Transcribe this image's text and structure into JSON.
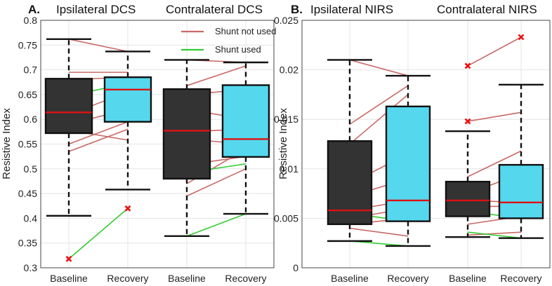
{
  "colors": {
    "shunt_not_used": "#c96a66",
    "shunt_used": "#33cc33",
    "baseline_box": "#333333",
    "recovery_box": "#55d8ee",
    "median": "#dd1111",
    "outlier": "#ee1111"
  },
  "legend": {
    "shunt_not_used": "Shunt not used",
    "shunt_used": "Shunt used"
  },
  "chart_data": [
    {
      "type": "boxplot",
      "panel_letter": "A.",
      "groups": [
        {
          "title": "Ipsilateral DCS"
        },
        {
          "title": "Contralateral DCS"
        }
      ],
      "ylabel": "Resistive Index",
      "ylim": [
        0.3,
        0.8
      ],
      "yticks": [
        0.3,
        0.35,
        0.4,
        0.45,
        0.5,
        0.55,
        0.6,
        0.65,
        0.7,
        0.75,
        0.8
      ],
      "ytick_labels": [
        "0.3",
        "0.35",
        "0.4",
        "0.45",
        "0.5",
        "0.55",
        "0.6",
        "0.65",
        "0.7",
        "0.75",
        "0.8"
      ],
      "categories": [
        "Baseline",
        "Recovery",
        "Baseline",
        "Recovery"
      ],
      "boxes": [
        {
          "fill": "baseline",
          "q1": 0.572,
          "median": 0.614,
          "q3": 0.682,
          "whisker_low": 0.405,
          "whisker_high": 0.762,
          "outliers": [
            0.318
          ]
        },
        {
          "fill": "recovery",
          "q1": 0.595,
          "median": 0.66,
          "q3": 0.685,
          "whisker_low": 0.458,
          "whisker_high": 0.737,
          "outliers": [
            0.42
          ]
        },
        {
          "fill": "baseline",
          "q1": 0.48,
          "median": 0.577,
          "q3": 0.661,
          "whisker_low": 0.364,
          "whisker_high": 0.72,
          "outliers": []
        },
        {
          "fill": "recovery",
          "q1": 0.524,
          "median": 0.56,
          "q3": 0.669,
          "whisker_low": 0.409,
          "whisker_high": 0.715,
          "outliers": []
        }
      ],
      "paired_lines": [
        {
          "group": 0,
          "shunt": false,
          "baseline": 0.762,
          "recovery": 0.737
        },
        {
          "group": 0,
          "shunt": false,
          "baseline": 0.695,
          "recovery": 0.695
        },
        {
          "group": 0,
          "shunt": false,
          "baseline": 0.68,
          "recovery": 0.685
        },
        {
          "group": 0,
          "shunt": false,
          "baseline": 0.61,
          "recovery": 0.655
        },
        {
          "group": 0,
          "shunt": false,
          "baseline": 0.59,
          "recovery": 0.62
        },
        {
          "group": 0,
          "shunt": false,
          "baseline": 0.55,
          "recovery": 0.595
        },
        {
          "group": 0,
          "shunt": false,
          "baseline": 0.535,
          "recovery": 0.58
        },
        {
          "group": 0,
          "shunt": false,
          "baseline": 0.578,
          "recovery": 0.558
        },
        {
          "group": 0,
          "shunt": true,
          "baseline": 0.318,
          "recovery": 0.42
        },
        {
          "group": 0,
          "shunt": true,
          "baseline": 0.648,
          "recovery": 0.672
        },
        {
          "group": 1,
          "shunt": false,
          "baseline": 0.72,
          "recovery": 0.715
        },
        {
          "group": 1,
          "shunt": false,
          "baseline": 0.668,
          "recovery": 0.708
        },
        {
          "group": 1,
          "shunt": false,
          "baseline": 0.65,
          "recovery": 0.66
        },
        {
          "group": 1,
          "shunt": false,
          "baseline": 0.62,
          "recovery": 0.6
        },
        {
          "group": 1,
          "shunt": false,
          "baseline": 0.575,
          "recovery": 0.58
        },
        {
          "group": 1,
          "shunt": false,
          "baseline": 0.56,
          "recovery": 0.55
        },
        {
          "group": 1,
          "shunt": false,
          "baseline": 0.508,
          "recovery": 0.525
        },
        {
          "group": 1,
          "shunt": false,
          "baseline": 0.445,
          "recovery": 0.5
        },
        {
          "group": 1,
          "shunt": false,
          "baseline": 0.47,
          "recovery": 0.54
        },
        {
          "group": 1,
          "shunt": true,
          "baseline": 0.364,
          "recovery": 0.409
        },
        {
          "group": 1,
          "shunt": true,
          "baseline": 0.492,
          "recovery": 0.51
        }
      ]
    },
    {
      "type": "boxplot",
      "panel_letter": "B.",
      "groups": [
        {
          "title": "Ipsilateral NIRS"
        },
        {
          "title": "Contralateral NIRS"
        }
      ],
      "ylabel": "Resistive Index",
      "ylim": [
        0,
        0.025
      ],
      "yticks": [
        0,
        0.005,
        0.01,
        0.015,
        0.02,
        0.025
      ],
      "ytick_labels": [
        "0",
        "0.005",
        "0.01",
        "0.015",
        "0.02",
        "0.025"
      ],
      "categories": [
        "Baseline",
        "Recovery",
        "Baseline",
        "Recovery"
      ],
      "boxes": [
        {
          "fill": "baseline",
          "q1": 0.0044,
          "median": 0.0058,
          "q3": 0.0128,
          "whisker_low": 0.0027,
          "whisker_high": 0.021,
          "outliers": []
        },
        {
          "fill": "recovery",
          "q1": 0.0047,
          "median": 0.0068,
          "q3": 0.0163,
          "whisker_low": 0.0022,
          "whisker_high": 0.0194,
          "outliers": []
        },
        {
          "fill": "baseline",
          "q1": 0.0052,
          "median": 0.0068,
          "q3": 0.0087,
          "whisker_low": 0.0031,
          "whisker_high": 0.0138,
          "outliers": [
            0.0148,
            0.0204
          ]
        },
        {
          "fill": "recovery",
          "q1": 0.005,
          "median": 0.0066,
          "q3": 0.0104,
          "whisker_low": 0.003,
          "whisker_high": 0.0185,
          "outliers": [
            0.0233
          ]
        }
      ],
      "paired_lines": [
        {
          "group": 0,
          "shunt": false,
          "baseline": 0.021,
          "recovery": 0.0194
        },
        {
          "group": 0,
          "shunt": false,
          "baseline": 0.0145,
          "recovery": 0.0184
        },
        {
          "group": 0,
          "shunt": false,
          "baseline": 0.0125,
          "recovery": 0.0175
        },
        {
          "group": 0,
          "shunt": false,
          "baseline": 0.0085,
          "recovery": 0.0115
        },
        {
          "group": 0,
          "shunt": false,
          "baseline": 0.0072,
          "recovery": 0.009
        },
        {
          "group": 0,
          "shunt": false,
          "baseline": 0.0058,
          "recovery": 0.0068
        },
        {
          "group": 0,
          "shunt": false,
          "baseline": 0.005,
          "recovery": 0.006
        },
        {
          "group": 0,
          "shunt": false,
          "baseline": 0.0044,
          "recovery": 0.005
        },
        {
          "group": 0,
          "shunt": false,
          "baseline": 0.004,
          "recovery": 0.0032
        },
        {
          "group": 0,
          "shunt": true,
          "baseline": 0.0027,
          "recovery": 0.0022
        },
        {
          "group": 0,
          "shunt": true,
          "baseline": 0.0055,
          "recovery": 0.0047
        },
        {
          "group": 1,
          "shunt": false,
          "baseline": 0.0204,
          "recovery": 0.0233
        },
        {
          "group": 1,
          "shunt": false,
          "baseline": 0.0148,
          "recovery": 0.0157
        },
        {
          "group": 1,
          "shunt": false,
          "baseline": 0.0092,
          "recovery": 0.0118
        },
        {
          "group": 1,
          "shunt": false,
          "baseline": 0.0075,
          "recovery": 0.0095
        },
        {
          "group": 1,
          "shunt": false,
          "baseline": 0.0068,
          "recovery": 0.0066
        },
        {
          "group": 1,
          "shunt": false,
          "baseline": 0.0062,
          "recovery": 0.0062
        },
        {
          "group": 1,
          "shunt": false,
          "baseline": 0.0044,
          "recovery": 0.0052
        },
        {
          "group": 1,
          "shunt": false,
          "baseline": 0.0033,
          "recovery": 0.0036
        },
        {
          "group": 1,
          "shunt": true,
          "baseline": 0.0057,
          "recovery": 0.005
        },
        {
          "group": 1,
          "shunt": true,
          "baseline": 0.0036,
          "recovery": 0.003
        }
      ]
    }
  ]
}
